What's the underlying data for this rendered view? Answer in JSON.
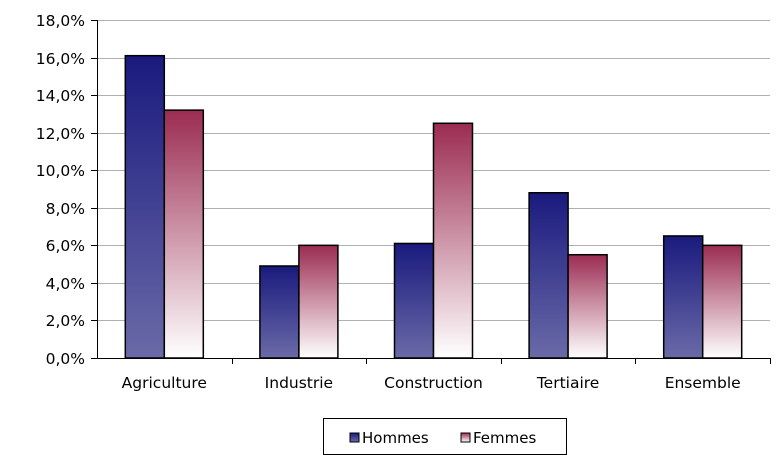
{
  "chart_data": {
    "type": "bar",
    "categories": [
      "Agriculture",
      "Industrie",
      "Construction",
      "Tertiaire",
      "Ensemble"
    ],
    "series": [
      {
        "name": "Hommes",
        "values": [
          16.1,
          4.9,
          6.1,
          8.8,
          6.5
        ]
      },
      {
        "name": "Femmes",
        "values": [
          13.2,
          6.0,
          12.5,
          5.5,
          6.0
        ]
      }
    ],
    "title": "",
    "xlabel": "",
    "ylabel": "",
    "ylim": [
      0,
      18
    ],
    "ytick_step": 2,
    "yticks": [
      "0,0%",
      "2,0%",
      "4,0%",
      "6,0%",
      "8,0%",
      "10,0%",
      "12,0%",
      "14,0%",
      "16,0%",
      "18,0%"
    ],
    "grid": true,
    "legend_position": "bottom-center",
    "colors": {
      "hommes_dark": "#1a1a7e",
      "hommes_light": "#6a6aa8",
      "femmes_dark": "#9b2c52",
      "femmes_light": "#ffffff",
      "grid": "#b0b0b0"
    }
  }
}
